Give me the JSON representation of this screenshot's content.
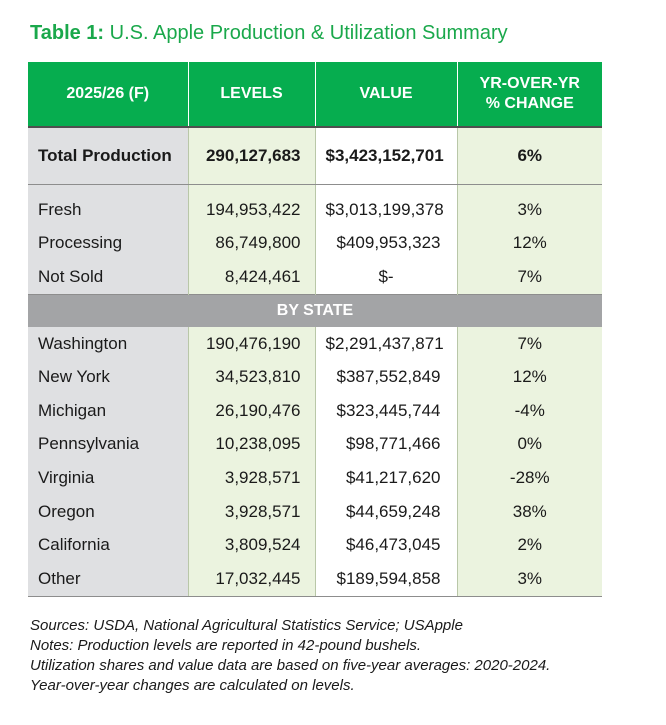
{
  "title": {
    "lead": "Table 1:",
    "rest": " U.S. Apple Production & Utilization Summary"
  },
  "header": {
    "period": "2025/26 (F)",
    "levels": "LEVELS",
    "value": "VALUE",
    "change_line1": "YR-OVER-YR",
    "change_line2": "% CHANGE"
  },
  "total": {
    "label": "Total Production",
    "levels": "290,127,683",
    "value": "$3,423,152,701",
    "change": "6%"
  },
  "utilization": [
    {
      "label": "Fresh",
      "levels": "194,953,422",
      "value": "$3,013,199,378",
      "change": "3%"
    },
    {
      "label": "Processing",
      "levels": "86,749,800",
      "value": "$409,953,323",
      "change": "12%"
    },
    {
      "label": "Not Sold",
      "levels": "8,424,461",
      "value": "$-",
      "change": "7%"
    }
  ],
  "by_state_label": "BY STATE",
  "states": [
    {
      "label": "Washington",
      "levels": "190,476,190",
      "value": "$2,291,437,871",
      "change": "7%"
    },
    {
      "label": "New York",
      "levels": "34,523,810",
      "value": "$387,552,849",
      "change": "12%"
    },
    {
      "label": "Michigan",
      "levels": "26,190,476",
      "value": "$323,445,744",
      "change": "-4%"
    },
    {
      "label": "Pennsylvania",
      "levels": "10,238,095",
      "value": "$98,771,466",
      "change": "0%"
    },
    {
      "label": "Virginia",
      "levels": "3,928,571",
      "value": "$41,217,620",
      "change": "-28%"
    },
    {
      "label": "Oregon",
      "levels": "3,928,571",
      "value": "$44,659,248",
      "change": "38%"
    },
    {
      "label": "California",
      "levels": "3,809,524",
      "value": "$46,473,045",
      "change": "2%"
    },
    {
      "label": "Other",
      "levels": "17,032,445",
      "value": "$189,594,858",
      "change": "3%"
    }
  ],
  "notes": [
    "Sources: USDA, National Agricultural Statistics Service; USApple",
    "Notes: Production levels are reported in 42-pound bushels.",
    "Utilization shares and value data are based on five-year averages: 2020-2024.",
    "Year-over-year changes are calculated on levels."
  ],
  "colors": {
    "accent": "#06ad4f",
    "title": "#1aa84b",
    "label_bg": "#dfe0e2",
    "green_bg": "#ebf3df",
    "state_bar": "#a3a4a6"
  }
}
